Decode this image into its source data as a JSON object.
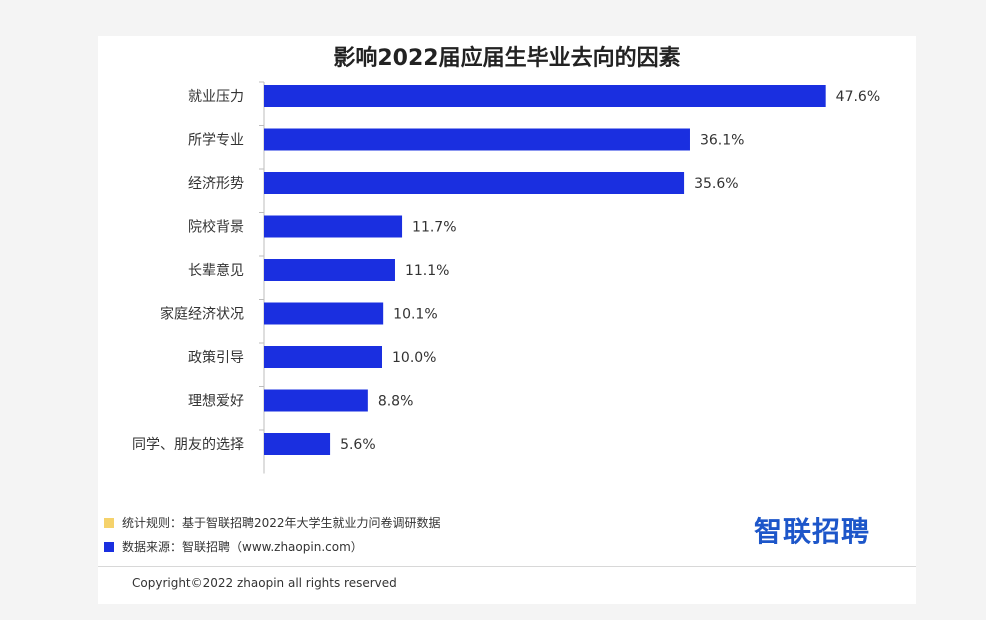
{
  "chart_data": {
    "type": "bar",
    "orientation": "horizontal",
    "title": "影响2022届应届生毕业去向的因素",
    "categories": [
      "就业压力",
      "所学专业",
      "经济形势",
      "院校背景",
      "长辈意见",
      "家庭经济状况",
      "政策引导",
      "理想爱好",
      "同学、朋友的选择"
    ],
    "values": [
      47.6,
      36.1,
      35.6,
      11.7,
      11.1,
      10.1,
      10.0,
      8.8,
      5.6
    ],
    "value_labels": [
      "47.6%",
      "36.1%",
      "35.6%",
      "11.7%",
      "11.1%",
      "10.1%",
      "10.0%",
      "8.8%",
      "5.6%"
    ],
    "bar_color": "#1a2fe0",
    "xlim": [
      0,
      50
    ],
    "grid": false
  },
  "footnotes": [
    {
      "color": "#f5d26b",
      "text": "统计规则：基于智联招聘2022年大学生就业力问卷调研数据"
    },
    {
      "color": "#1a2fe0",
      "text": "数据来源：智联招聘（www.zhaopin.com）"
    }
  ],
  "brand": {
    "logo_text": "智联招聘",
    "color": "#1d56c9"
  },
  "copyright": "Copyright©2022 zhaopin all rights reserved"
}
